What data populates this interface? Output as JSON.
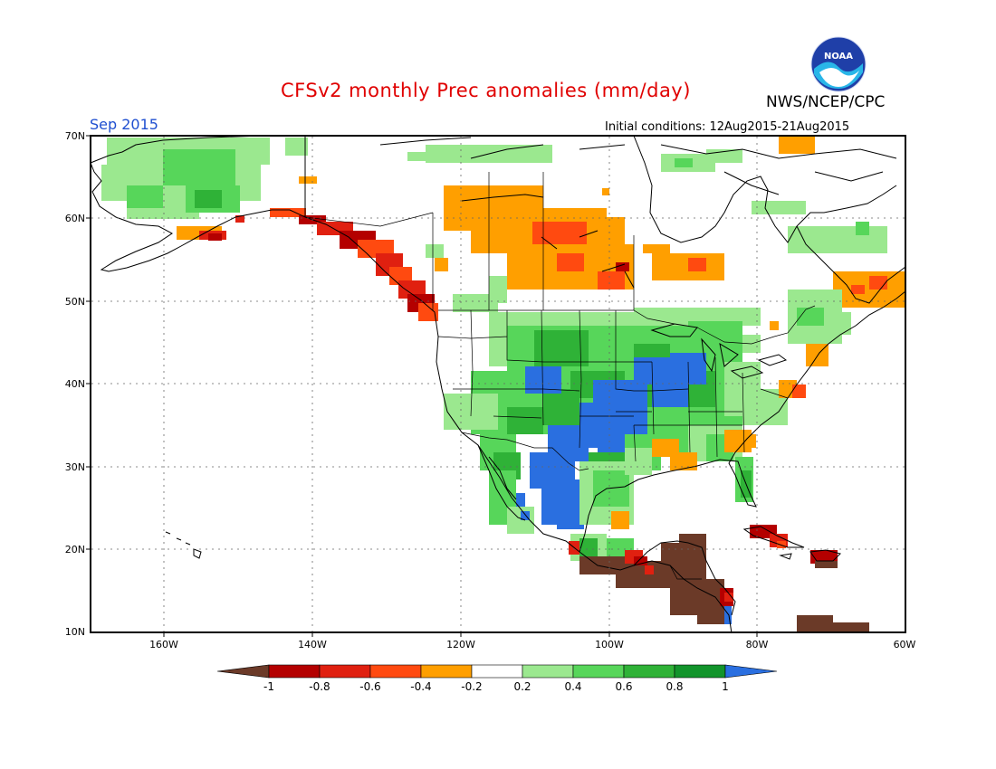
{
  "header": {
    "title": "CFSv2 monthly Prec anomalies (mm/day)",
    "agency": "NWS/NCEP/CPC",
    "logo_text": "NOAA",
    "month": "Sep 2015",
    "initial_conditions": "Initial conditions: 12Aug2015-21Aug2015"
  },
  "axes": {
    "lat_labels": [
      "70N",
      "60N",
      "50N",
      "40N",
      "30N",
      "20N",
      "10N"
    ],
    "lon_labels": [
      "160W",
      "140W",
      "120W",
      "100W",
      "80W",
      "60W"
    ]
  },
  "colorbar": {
    "labels": [
      "-1",
      "-0.8",
      "-0.6",
      "-0.4",
      "-0.2",
      "0.2",
      "0.4",
      "0.6",
      "0.8",
      "1"
    ],
    "colors": [
      "#6b3a28",
      "#b40000",
      "#e02010",
      "#ff4a10",
      "#ff9f00",
      "#ffffff",
      "#9be88f",
      "#57d65a",
      "#2fb237",
      "#12942b",
      "#2a6fe0"
    ]
  },
  "colors": {
    "neg_1": "#6b3a28",
    "neg_08": "#b40000",
    "neg_06": "#e02010",
    "neg_04": "#ff4a10",
    "neg_02": "#ff9f00",
    "pos_02": "#9be88f",
    "pos_04": "#57d65a",
    "pos_06": "#2fb237",
    "pos_08": "#12942b",
    "pos_1": "#2a6fe0"
  }
}
